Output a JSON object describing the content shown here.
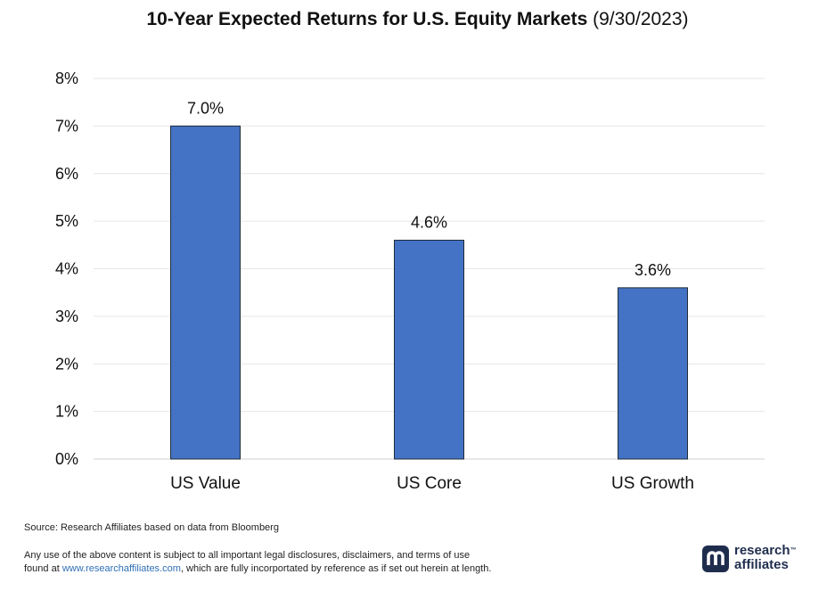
{
  "title": {
    "main": "10-Year Expected Returns for U.S. Equity Markets",
    "date": "(9/30/2023)"
  },
  "chart_data": {
    "type": "bar",
    "title": "10-Year Expected Returns for U.S. Equity Markets (9/30/2023)",
    "categories": [
      "US Value",
      "US Core",
      "US Growth"
    ],
    "values": [
      7.0,
      4.6,
      3.6
    ],
    "data_labels": [
      "7.0%",
      "4.6%",
      "3.6%"
    ],
    "ylim": [
      0,
      8
    ],
    "yticks": [
      0,
      1,
      2,
      3,
      4,
      5,
      6,
      7,
      8
    ],
    "ytick_labels": [
      "0%",
      "1%",
      "2%",
      "3%",
      "4%",
      "5%",
      "6%",
      "7%",
      "8%"
    ],
    "xlabel": "",
    "ylabel": "",
    "grid": true,
    "bar_color": "#4472c4"
  },
  "footer": {
    "source": "Source: Research Affiliates based on data from Bloomberg",
    "disclaimer_line1": "Any use of the above content is subject to all important legal disclosures, disclaimers, and terms of use",
    "disclaimer_prefix": "found at ",
    "disclaimer_link": "www.researchaffiliates.com",
    "disclaimer_suffix": ", which are fully incorportated by reference as if set out herein at length."
  },
  "logo": {
    "line1": "research",
    "tm": "™",
    "line2": "affiliates",
    "icon": "research-affiliates-logo-icon",
    "color": "#1f2d4d"
  }
}
